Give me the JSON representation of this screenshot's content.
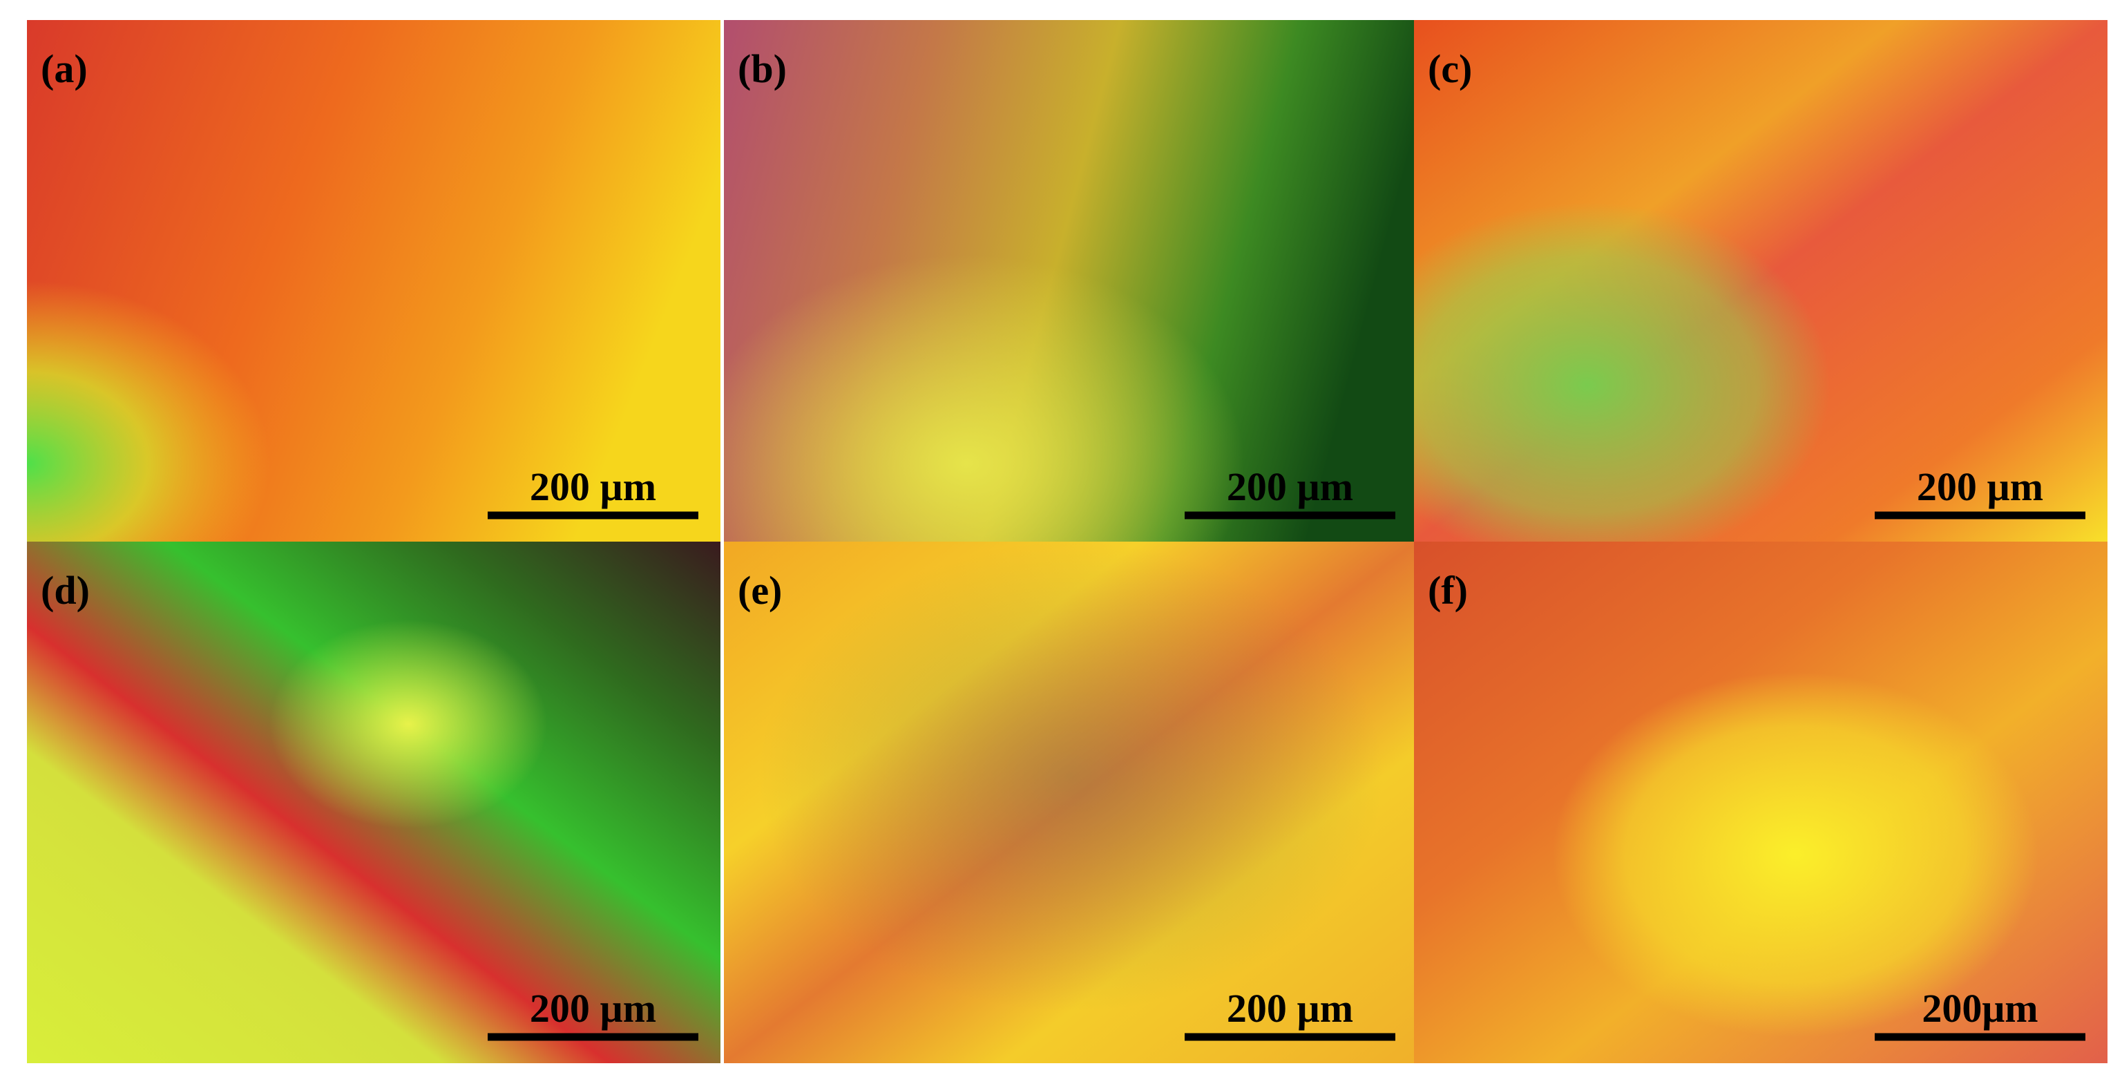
{
  "panels": [
    {
      "label": "(a)",
      "scale_bar": "200 µm"
    },
    {
      "label": "(b)",
      "scale_bar": "200 µm"
    },
    {
      "label": "(c)",
      "scale_bar": "200 µm"
    },
    {
      "label": "(d)",
      "scale_bar": "200 µm"
    },
    {
      "label": "(e)",
      "scale_bar": "200 µm"
    },
    {
      "label": "(f)",
      "scale_bar": "200μm"
    }
  ]
}
